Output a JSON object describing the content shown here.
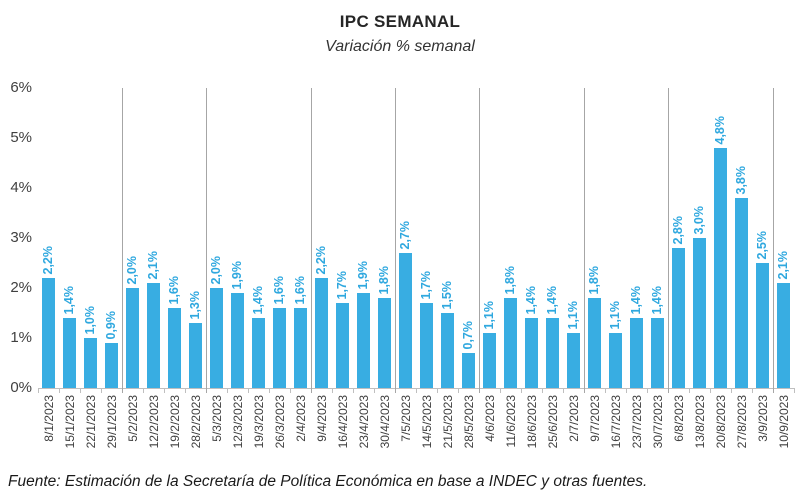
{
  "header": {
    "title": "IPC SEMANAL",
    "subtitle": "Variación % semanal"
  },
  "footer": {
    "source_note": "Fuente: Estimación de la Secretaría de Política Económica en base a INDEC y otras fuentes."
  },
  "chart_data": {
    "type": "bar",
    "title": "IPC SEMANAL",
    "subtitle": "Variación % semanal",
    "categories": [
      "8/1/2023",
      "15/1/2023",
      "22/1/2023",
      "29/1/2023",
      "5/2/2023",
      "12/2/2023",
      "19/2/2023",
      "28/2/2023",
      "5/3/2023",
      "12/3/2023",
      "19/3/2023",
      "26/3/2023",
      "2/4/2023",
      "9/4/2023",
      "16/4/2023",
      "23/4/2023",
      "30/4/2023",
      "7/5/2023",
      "14/5/2023",
      "21/5/2023",
      "28/5/2023",
      "4/6/2023",
      "11/6/2023",
      "18/6/2023",
      "25/6/2023",
      "2/7/2023",
      "9/7/2023",
      "16/7/2023",
      "23/7/2023",
      "30/7/2023",
      "6/8/2023",
      "13/8/2023",
      "20/8/2023",
      "27/8/2023",
      "3/9/2023",
      "10/9/2023"
    ],
    "values": [
      2.2,
      1.4,
      1.0,
      0.9,
      2.0,
      2.1,
      1.6,
      1.3,
      2.0,
      1.9,
      1.4,
      1.6,
      1.6,
      2.2,
      1.7,
      1.9,
      1.8,
      2.7,
      1.7,
      1.5,
      0.7,
      1.1,
      1.8,
      1.4,
      1.4,
      1.1,
      1.8,
      1.1,
      1.4,
      1.4,
      2.8,
      3.0,
      4.8,
      3.8,
      2.5,
      2.1
    ],
    "value_labels": [
      "2,2%",
      "1,4%",
      "1,0%",
      "0,9%",
      "2,0%",
      "2,1%",
      "1,6%",
      "1,3%",
      "2,0%",
      "1,9%",
      "1,4%",
      "1,6%",
      "1,6%",
      "2,2%",
      "1,7%",
      "1,9%",
      "1,8%",
      "2,7%",
      "1,7%",
      "1,5%",
      "0,7%",
      "1,1%",
      "1,8%",
      "1,4%",
      "1,4%",
      "1,1%",
      "1,8%",
      "1,1%",
      "1,4%",
      "1,4%",
      "2,8%",
      "3,0%",
      "4,8%",
      "3,8%",
      "2,5%",
      "2,1%"
    ],
    "y_ticks": [
      "0%",
      "1%",
      "2%",
      "3%",
      "4%",
      "5%",
      "6%"
    ],
    "ylim": [
      0,
      6
    ],
    "xlabel": "",
    "ylabel": "",
    "legend": "none",
    "horizontal_gridlines": false,
    "vertical_separators_after_index": [
      4,
      8,
      13,
      17,
      21,
      26,
      30,
      35
    ],
    "colors": {
      "bar": "#38ADE2",
      "value_label": "#2FA8DF",
      "axis_text": "#404040",
      "separator_line": "#A6A6A6",
      "axis_line": "#BFBFBF"
    }
  }
}
